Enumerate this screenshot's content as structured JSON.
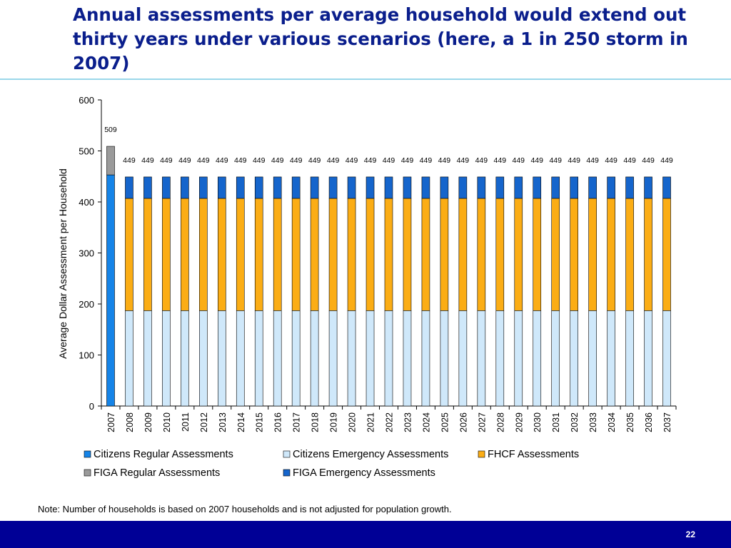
{
  "title": "Annual assessments per average household would extend out thirty years under various scenarios (here, a 1 in 250 storm in 2007)",
  "note": "Note: Number of households is based on 2007 households and is not adjusted for population growth.",
  "page_number": "22",
  "colors": {
    "title": "#0a1e8c",
    "footer": "#000096",
    "citizens_regular": "#1584e8",
    "citizens_emergency": "#cfe8fa",
    "fhcf": "#fbad15",
    "figa_regular": "#9a9a9a",
    "figa_emergency": "#1565cc"
  },
  "chart_data": {
    "type": "bar",
    "stacked": true,
    "title": "",
    "xlabel": "",
    "ylabel": "Average Dollar Assessment per Household",
    "ylim": [
      0,
      600
    ],
    "yticks": [
      "0",
      "100",
      "200",
      "300",
      "400",
      "500",
      "600"
    ],
    "categories": [
      "2007",
      "2008",
      "2009",
      "2010",
      "2011",
      "2012",
      "2013",
      "2014",
      "2015",
      "2016",
      "2017",
      "2018",
      "2019",
      "2020",
      "2021",
      "2022",
      "2023",
      "2024",
      "2025",
      "2026",
      "2027",
      "2028",
      "2029",
      "2030",
      "2031",
      "2032",
      "2033",
      "2034",
      "2035",
      "2036",
      "2037"
    ],
    "series": [
      {
        "name": "Citizens Regular Assessments",
        "color": "#1584e8",
        "values": [
          453,
          0,
          0,
          0,
          0,
          0,
          0,
          0,
          0,
          0,
          0,
          0,
          0,
          0,
          0,
          0,
          0,
          0,
          0,
          0,
          0,
          0,
          0,
          0,
          0,
          0,
          0,
          0,
          0,
          0,
          0
        ]
      },
      {
        "name": "Citizens Emergency Assessments",
        "color": "#cfe8fa",
        "values": [
          0,
          187,
          187,
          187,
          187,
          187,
          187,
          187,
          187,
          187,
          187,
          187,
          187,
          187,
          187,
          187,
          187,
          187,
          187,
          187,
          187,
          187,
          187,
          187,
          187,
          187,
          187,
          187,
          187,
          187,
          187
        ]
      },
      {
        "name": "FHCF Assessments",
        "color": "#fbad15",
        "values": [
          0,
          220,
          220,
          220,
          220,
          220,
          220,
          220,
          220,
          220,
          220,
          220,
          220,
          220,
          220,
          220,
          220,
          220,
          220,
          220,
          220,
          220,
          220,
          220,
          220,
          220,
          220,
          220,
          220,
          220,
          220
        ]
      },
      {
        "name": "FIGA Regular Assessments",
        "color": "#9a9a9a",
        "values": [
          56,
          0,
          0,
          0,
          0,
          0,
          0,
          0,
          0,
          0,
          0,
          0,
          0,
          0,
          0,
          0,
          0,
          0,
          0,
          0,
          0,
          0,
          0,
          0,
          0,
          0,
          0,
          0,
          0,
          0,
          0
        ]
      },
      {
        "name": "FIGA Emergency Assessments",
        "color": "#1565cc",
        "values": [
          0,
          42,
          42,
          42,
          42,
          42,
          42,
          42,
          42,
          42,
          42,
          42,
          42,
          42,
          42,
          42,
          42,
          42,
          42,
          42,
          42,
          42,
          42,
          42,
          42,
          42,
          42,
          42,
          42,
          42,
          42
        ]
      }
    ],
    "totals": [
      509,
      449,
      449,
      449,
      449,
      449,
      449,
      449,
      449,
      449,
      449,
      449,
      449,
      449,
      449,
      449,
      449,
      449,
      449,
      449,
      449,
      449,
      449,
      449,
      449,
      449,
      449,
      449,
      449,
      449,
      449
    ],
    "legend": {
      "placement": "bottom",
      "items": [
        {
          "label": "Citizens Regular Assessments",
          "color": "#1584e8"
        },
        {
          "label": "Citizens Emergency Assessments",
          "color": "#cfe8fa"
        },
        {
          "label": "FHCF Assessments",
          "color": "#fbad15"
        },
        {
          "label": "FIGA Regular Assessments",
          "color": "#9a9a9a"
        },
        {
          "label": "FIGA Emergency Assessments",
          "color": "#1565cc"
        }
      ]
    },
    "grid": false
  }
}
